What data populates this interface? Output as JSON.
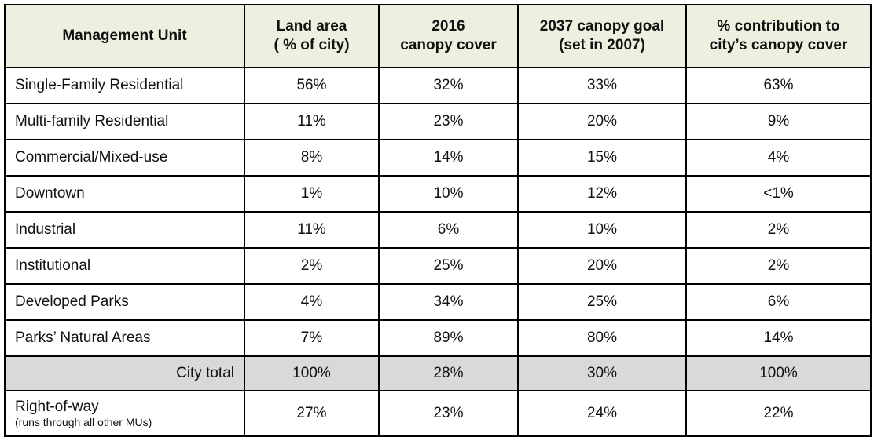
{
  "table": {
    "headers": [
      {
        "line1": "Management Unit",
        "line2": ""
      },
      {
        "line1": "Land area",
        "line2": "( % of city)"
      },
      {
        "line1": "2016",
        "line2": "canopy cover"
      },
      {
        "line1": "2037 canopy goal",
        "line2": "(set in 2007)"
      },
      {
        "line1": "% contribution to",
        "line2": "city’s  canopy cover"
      }
    ],
    "rows": [
      {
        "unit": "Single-Family Residential",
        "land": "56%",
        "cover": "32%",
        "goal": "33%",
        "contribution": "63%"
      },
      {
        "unit": "Multi-family Residential",
        "land": "11%",
        "cover": "23%",
        "goal": "20%",
        "contribution": "9%"
      },
      {
        "unit": "Commercial/Mixed-use",
        "land": "8%",
        "cover": "14%",
        "goal": "15%",
        "contribution": "4%"
      },
      {
        "unit": "Downtown",
        "land": "1%",
        "cover": "10%",
        "goal": "12%",
        "contribution": "<1%"
      },
      {
        "unit": "Industrial",
        "land": "11%",
        "cover": "6%",
        "goal": "10%",
        "contribution": "2%"
      },
      {
        "unit": "Institutional",
        "land": "2%",
        "cover": "25%",
        "goal": "20%",
        "contribution": "2%"
      },
      {
        "unit": "Developed Parks",
        "land": "4%",
        "cover": "34%",
        "goal": "25%",
        "contribution": "6%"
      },
      {
        "unit": "Parks’ Natural Areas",
        "land": "7%",
        "cover": "89%",
        "goal": "80%",
        "contribution": "14%"
      }
    ],
    "total": {
      "unit": "City total",
      "land": "100%",
      "cover": "28%",
      "goal": "30%",
      "contribution": "100%"
    },
    "right_of_way": {
      "unit": "Right-of-way",
      "note": "(runs through all other MUs)",
      "land": "27%",
      "cover": "23%",
      "goal": "24%",
      "contribution": "22%"
    }
  }
}
